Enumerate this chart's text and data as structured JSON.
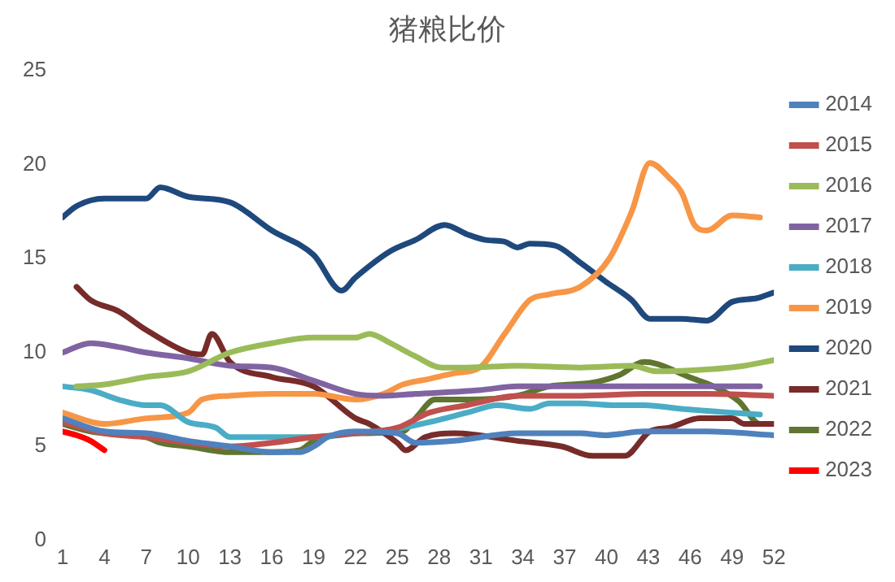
{
  "chart_data": {
    "type": "line",
    "title": "猪粮比价",
    "xlim": [
      1,
      52
    ],
    "xticks": [
      1,
      4,
      7,
      10,
      13,
      16,
      19,
      22,
      25,
      28,
      31,
      34,
      37,
      40,
      43,
      46,
      49,
      52
    ],
    "ylim": [
      0,
      25
    ],
    "yticks": [
      0,
      5,
      10,
      15,
      20,
      25
    ],
    "grid": false,
    "legend": "right",
    "marker": "none",
    "line_style": "solid",
    "series": [
      {
        "name": "2014",
        "color": "#4f81bd",
        "x": [
          1,
          4,
          7,
          10,
          13,
          16,
          18,
          19,
          20,
          22,
          25,
          26.3,
          29.1,
          33.6,
          38.1,
          39.9,
          42.7,
          47.2,
          52
        ],
        "values": [
          6.5,
          5.8,
          5.7,
          5.3,
          5.0,
          4.7,
          4.7,
          5.0,
          5.5,
          5.8,
          5.7,
          5.2,
          5.3,
          5.7,
          5.7,
          5.6,
          5.8,
          5.8,
          5.6
        ]
      },
      {
        "name": "2015",
        "color": "#c0504d",
        "x": [
          1,
          4,
          7,
          10,
          13,
          16,
          19,
          22,
          25,
          27.3,
          30,
          33.6,
          38.1,
          42.7,
          47.2,
          52
        ],
        "values": [
          6.3,
          5.7,
          5.5,
          5.2,
          5.0,
          5.2,
          5.5,
          5.7,
          6.0,
          6.8,
          7.2,
          7.7,
          7.7,
          7.8,
          7.8,
          7.7
        ]
      },
      {
        "name": "2016",
        "color": "#9bbb59",
        "x": [
          2,
          4,
          7,
          10,
          13,
          16,
          19,
          22,
          23,
          24.5,
          26.3,
          28.2,
          30,
          33.6,
          38.1,
          41.8,
          43.6,
          47.2,
          49.9,
          52
        ],
        "values": [
          8.2,
          8.3,
          8.7,
          9.0,
          10.0,
          10.5,
          10.8,
          10.8,
          11.0,
          10.5,
          9.8,
          9.2,
          9.2,
          9.3,
          9.2,
          9.3,
          9.0,
          9.1,
          9.3,
          9.6
        ]
      },
      {
        "name": "2017",
        "color": "#8064a2",
        "x": [
          1,
          3,
          5,
          7,
          10,
          13,
          16,
          19,
          22,
          24,
          26.3,
          30.9,
          33.6,
          38.1,
          42.7,
          47.2,
          51
        ],
        "values": [
          10.0,
          10.5,
          10.3,
          10.0,
          9.7,
          9.3,
          9.2,
          8.5,
          7.8,
          7.7,
          7.8,
          8.0,
          8.2,
          8.2,
          8.2,
          8.2,
          8.2
        ]
      },
      {
        "name": "2018",
        "color": "#4bacc6",
        "x": [
          1,
          3,
          5,
          7,
          8,
          10,
          12,
          13,
          16,
          19,
          22,
          25.4,
          27.3,
          30,
          32.2,
          34.5,
          35.9,
          38.1,
          40.4,
          42.7,
          45.4,
          49,
          51
        ],
        "values": [
          8.2,
          8.0,
          7.5,
          7.2,
          7.2,
          6.3,
          6.0,
          5.5,
          5.5,
          5.5,
          5.7,
          6.0,
          6.3,
          6.8,
          7.2,
          7.0,
          7.3,
          7.3,
          7.2,
          7.2,
          7.0,
          6.8,
          6.7
        ]
      },
      {
        "name": "2019",
        "color": "#f79646",
        "x": [
          1,
          4,
          7,
          10,
          11,
          13,
          16,
          19,
          22,
          24,
          25.4,
          27.3,
          29.1,
          30.9,
          32.7,
          34.5,
          35.9,
          38.1,
          40.2,
          41.8,
          43.1,
          44.5,
          45.4,
          46.3,
          47.2,
          49,
          51
        ],
        "values": [
          6.8,
          6.2,
          6.5,
          6.8,
          7.5,
          7.7,
          7.8,
          7.8,
          7.5,
          7.8,
          8.3,
          8.6,
          8.9,
          9.2,
          11.0,
          12.8,
          13.1,
          13.5,
          15.0,
          17.5,
          20.1,
          19.3,
          18.5,
          16.8,
          16.5,
          17.3,
          17.2
        ]
      },
      {
        "name": "2020",
        "color": "#1f497d",
        "x": [
          1,
          2,
          4,
          7,
          8,
          10,
          13,
          16,
          19,
          21,
          22,
          24.5,
          26.3,
          28.4,
          30,
          31.3,
          32.7,
          33.6,
          34.5,
          36.3,
          38.1,
          39.9,
          41.8,
          43.1,
          45.4,
          47.2,
          49,
          50.8,
          52
        ],
        "values": [
          17.2,
          17.8,
          18.2,
          18.2,
          18.8,
          18.3,
          18.0,
          16.5,
          15.2,
          13.3,
          14.0,
          15.4,
          16.0,
          16.8,
          16.3,
          16.0,
          15.9,
          15.6,
          15.8,
          15.7,
          14.8,
          13.8,
          12.8,
          11.8,
          11.8,
          11.7,
          12.7,
          12.9,
          13.2
        ]
      },
      {
        "name": "2021",
        "color": "#772c2a",
        "x": [
          2,
          3,
          5,
          7,
          10,
          11,
          11.7,
          13,
          16,
          19,
          22,
          23,
          25,
          25.6,
          27,
          29.1,
          33.6,
          36.8,
          39,
          41.3,
          43.1,
          44.5,
          46.7,
          49,
          49.9,
          52
        ],
        "values": [
          13.5,
          12.8,
          12.2,
          11.2,
          10.0,
          9.9,
          11.0,
          9.5,
          8.7,
          8.2,
          6.5,
          6.2,
          5.2,
          4.8,
          5.5,
          5.7,
          5.3,
          5.0,
          4.5,
          4.5,
          5.8,
          6.0,
          6.5,
          6.5,
          6.2,
          6.2
        ]
      },
      {
        "name": "2022",
        "color": "#5f7530",
        "x": [
          1,
          3,
          4,
          7,
          8,
          10,
          13,
          16,
          18,
          19,
          22,
          25.4,
          26.3,
          27.7,
          30,
          33.6,
          35.9,
          39,
          40.9,
          42.7,
          43.6,
          45.9,
          47.7,
          49.5,
          51,
          52
        ],
        "values": [
          6.2,
          5.8,
          5.7,
          5.5,
          5.2,
          5.0,
          4.7,
          4.7,
          4.8,
          5.3,
          5.7,
          5.8,
          6.5,
          7.5,
          7.5,
          7.7,
          8.2,
          8.4,
          8.8,
          9.5,
          9.4,
          8.7,
          8.2,
          7.4,
          6.2,
          6.2
        ]
      },
      {
        "name": "2023",
        "color": "#ff0000",
        "x": [
          1,
          2,
          3,
          4
        ],
        "values": [
          5.8,
          5.6,
          5.3,
          4.8
        ]
      }
    ]
  }
}
